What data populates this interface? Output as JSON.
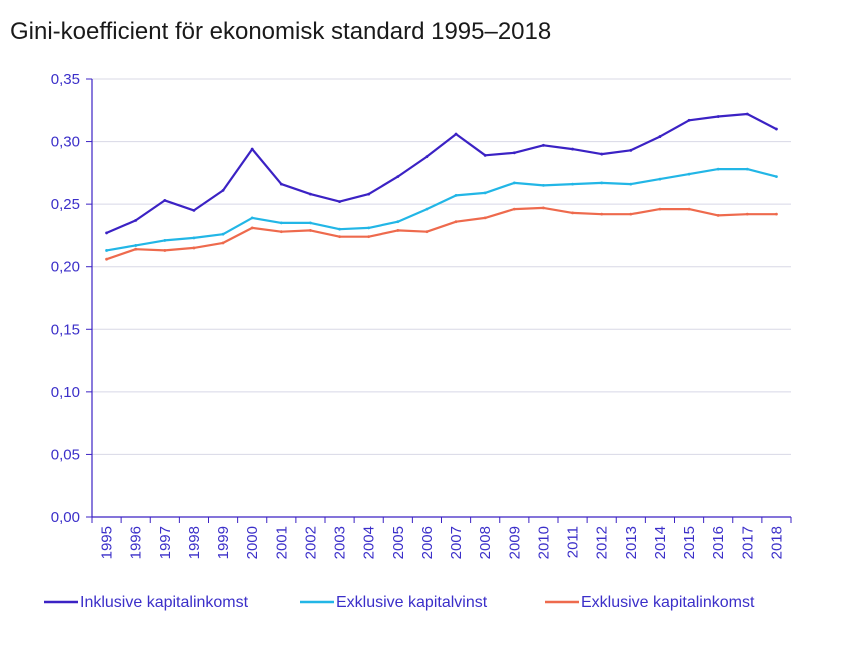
{
  "chart_data": {
    "type": "line",
    "title": "Gini-koefficient för ekonomisk standard 1995–2018",
    "xlabel": "",
    "ylabel": "",
    "ylim": [
      0,
      0.35
    ],
    "y_ticks": [
      "0,00",
      "0,05",
      "0,10",
      "0,15",
      "0,20",
      "0,25",
      "0,30",
      "0,35"
    ],
    "y_tick_values": [
      0,
      0.05,
      0.1,
      0.15,
      0.2,
      0.25,
      0.3,
      0.35
    ],
    "grid": true,
    "legend_position": "bottom",
    "categories": [
      "1995",
      "1996",
      "1997",
      "1998",
      "1999",
      "2000",
      "2001",
      "2002",
      "2003",
      "2004",
      "2005",
      "2006",
      "2007",
      "2008",
      "2009",
      "2010",
      "2011",
      "2012",
      "2013",
      "2014",
      "2015",
      "2016",
      "2017",
      "2018"
    ],
    "series": [
      {
        "name": "Inklusive kapitalinkomst",
        "color": "#3b22c4",
        "values": [
          0.227,
          0.237,
          0.253,
          0.245,
          0.261,
          0.294,
          0.266,
          0.258,
          0.252,
          0.258,
          0.272,
          0.288,
          0.306,
          0.289,
          0.291,
          0.297,
          0.294,
          0.29,
          0.293,
          0.304,
          0.317,
          0.32,
          0.322,
          0.31
        ]
      },
      {
        "name": "Exklusive kapitalvinst",
        "color": "#22b6e6",
        "values": [
          0.213,
          0.217,
          0.221,
          0.223,
          0.226,
          0.239,
          0.235,
          0.235,
          0.23,
          0.231,
          0.236,
          0.246,
          0.257,
          0.259,
          0.267,
          0.265,
          0.266,
          0.267,
          0.266,
          0.27,
          0.274,
          0.278,
          0.278,
          0.272
        ]
      },
      {
        "name": "Exklusive kapitalinkomst",
        "color": "#ee6a4d",
        "values": [
          0.206,
          0.214,
          0.213,
          0.215,
          0.219,
          0.231,
          0.228,
          0.229,
          0.224,
          0.224,
          0.229,
          0.228,
          0.236,
          0.239,
          0.246,
          0.247,
          0.243,
          0.242,
          0.242,
          0.246,
          0.246,
          0.241,
          0.242,
          0.242
        ]
      }
    ]
  }
}
